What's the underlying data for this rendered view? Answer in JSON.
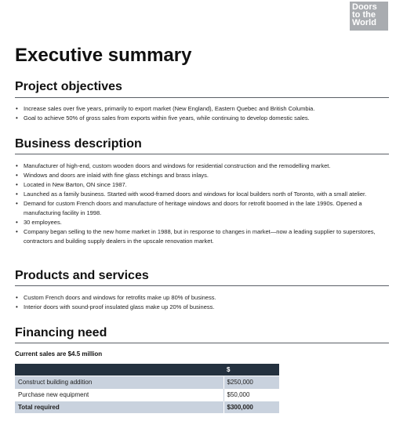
{
  "logo": {
    "lines": [
      "Doors",
      "to the",
      "World"
    ]
  },
  "title": "Executive summary",
  "sections": {
    "objectives": {
      "heading": "Project objectives",
      "items": [
        "Increase sales over five years, primarily to export market (New England), Eastern Quebec and British Columbia.",
        "Goal to achieve 50% of gross sales from exports within five years, while continuing to develop domestic sales."
      ]
    },
    "business": {
      "heading": "Business description",
      "items": [
        "Manufacturer of high-end, custom wooden doors and windows for residential construction and the remodelling market.",
        "Windows and doors are inlaid with fine glass etchings and brass inlays.",
        "Located in New Barton, ON since 1987.",
        "Launched as a family business. Started with wood-framed doors and windows for local builders north of Toronto, with a small atelier.",
        "Demand for custom French doors and manufacture of heritage windows and doors for retrofit boomed in the late 1990s. Opened a manufacturing facility in 1998.",
        "30 employees.",
        "Company began selling to the new home market in 1988, but in response to changes in market—now a leading supplier to superstores, contractors and building supply dealers in the upscale renovation market."
      ]
    },
    "products": {
      "heading": "Products and services",
      "items": [
        "Custom French doors and windows for retrofits make up 80% of business.",
        "Interior doors with sound-proof insulated glass make up 20% of business."
      ]
    },
    "financing": {
      "heading": "Financing need",
      "subheading": "Current sales are $4.5 million",
      "table": {
        "header": [
          "",
          "$"
        ],
        "rows": [
          {
            "label": "Construct building addition",
            "amount": "$250,000"
          },
          {
            "label": "Purchase new equipment",
            "amount": "$50,000"
          },
          {
            "label": "Total required",
            "amount": "$300,000"
          }
        ]
      }
    }
  },
  "colors": {
    "logo_bg": "#a9acb0",
    "table_header_bg": "#24313f",
    "table_row_shade": "#c9d2de"
  }
}
